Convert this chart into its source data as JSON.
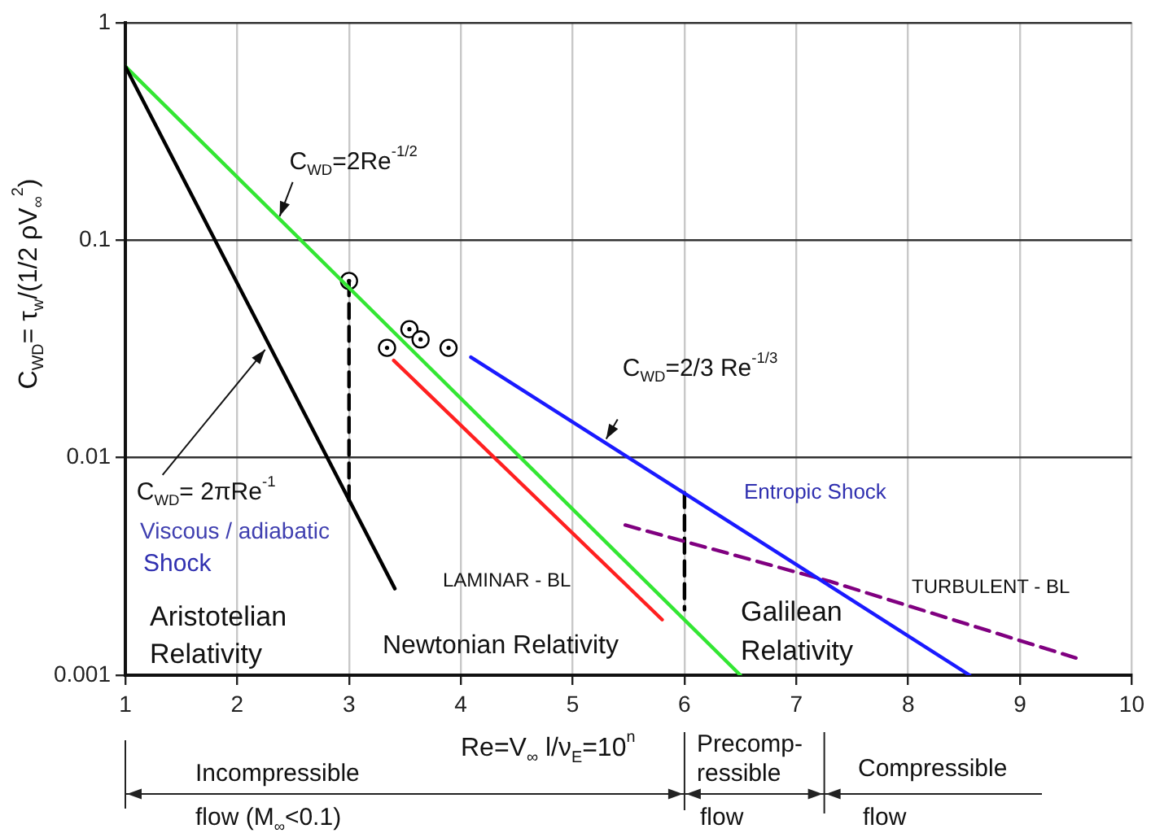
{
  "chart_data": {
    "type": "line",
    "xlabel": "Re=V$_{∞}$ l/ν$_{E}$=10$^{n}$",
    "ylabel": "C$_{WD}$= τ$_{w}$/(1/2 ρV$_{∞}$$^{2}$)",
    "xlim": [
      1,
      10
    ],
    "xticks": [
      1,
      2,
      3,
      4,
      5,
      6,
      7,
      8,
      9,
      10
    ],
    "ylim": [
      0.001,
      1
    ],
    "yticks": [
      0.001,
      0.01,
      0.1,
      1
    ],
    "log": "y",
    "grid": true,
    "legend": false,
    "series": [
      {
        "color": "#000000",
        "x": [
          1,
          3.41
        ],
        "values": [
          0.63,
          0.0025
        ],
        "marker": "none",
        "line_style": "solid"
      },
      {
        "color": "#33e633",
        "x": [
          1,
          6.5
        ],
        "values": [
          0.63,
          0.001
        ],
        "marker": "none",
        "line_style": "solid"
      },
      {
        "color": "#ff2020",
        "x": [
          3.4,
          5.8
        ],
        "values": [
          0.028,
          0.0018
        ],
        "marker": "none",
        "line_style": "solid"
      },
      {
        "color": "#1a1aff",
        "x": [
          4.09,
          8.55
        ],
        "values": [
          0.029,
          0.001
        ],
        "marker": "none",
        "line_style": "solid"
      },
      {
        "color": "#800080",
        "x": [
          5.47,
          7.3,
          9.5
        ],
        "values": [
          0.0049,
          0.0027,
          0.0012
        ],
        "marker": "none",
        "line_style": "dashed"
      },
      {
        "color": "#000000",
        "x": [
          3,
          3
        ],
        "values": [
          0.065,
          0.0063
        ],
        "marker": "none",
        "line_style": "dashed"
      },
      {
        "color": "#000000",
        "x": [
          6,
          6
        ],
        "values": [
          0.0069,
          0.002
        ],
        "marker": "none",
        "line_style": "dashed"
      },
      {
        "type": "scatter",
        "color": "#000000",
        "x": [
          3,
          3.34,
          3.54,
          3.64,
          3.89
        ],
        "values": [
          0.065,
          0.032,
          0.039,
          0.035,
          0.032
        ],
        "marker": "circle"
      }
    ],
    "annotations": [
      {
        "text": "C$_{WD}$=2Re$^{-1/2}$",
        "x": 2.38,
        "y": 0.129
      },
      {
        "text": "C$_{WD}$= 2πRe$^{-1}$",
        "x": 2.25,
        "y": 0.0314
      },
      {
        "text": "C$_{WD}$=2/3 Re$^{-1/3}$",
        "x": 5.3,
        "y": 0.0122
      },
      "Viscous / adiabatic",
      "Shock",
      "Aristotelian",
      "Relativity",
      "LAMINAR - BL",
      "Newtonian Relativity",
      "Galilean",
      "Relativity",
      "Entropic Shock",
      "TURBULENT - BL",
      "Incompressible",
      "flow (M$_{∞}$<0.1)",
      "Precomp-",
      "ressible",
      "flow",
      "Compressible",
      "flow"
    ]
  }
}
